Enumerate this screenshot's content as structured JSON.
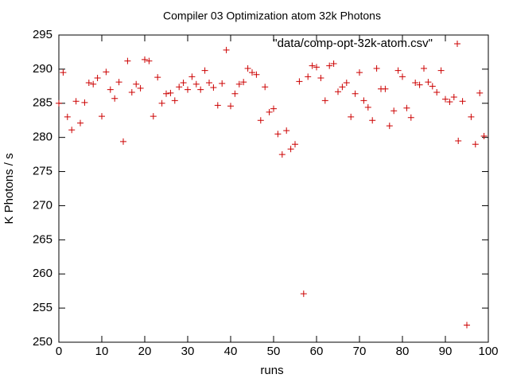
{
  "chart_data": {
    "type": "scatter",
    "title": "Compiler 03 Optimization atom 32k Photons",
    "x_label": "runs",
    "y_label": "K Photons / s",
    "xlim": [
      0,
      100
    ],
    "ylim": [
      250,
      295
    ],
    "xticks": [
      0,
      10,
      20,
      30,
      40,
      50,
      60,
      70,
      80,
      90,
      100
    ],
    "yticks": [
      250,
      255,
      260,
      265,
      270,
      275,
      280,
      285,
      290,
      295
    ],
    "grid": false,
    "legend": "top-right",
    "series": [
      {
        "name": "\"data/comp-opt-32k-atom.csv\"",
        "color": "#cc0000",
        "x": [
          0,
          1,
          2,
          3,
          4,
          5,
          6,
          7,
          8,
          9,
          10,
          11,
          12,
          13,
          14,
          15,
          16,
          17,
          18,
          19,
          20,
          21,
          22,
          23,
          24,
          25,
          26,
          27,
          28,
          29,
          30,
          31,
          32,
          33,
          34,
          35,
          36,
          37,
          38,
          39,
          40,
          41,
          42,
          43,
          44,
          45,
          46,
          47,
          48,
          49,
          50,
          51,
          52,
          53,
          54,
          55,
          56,
          57,
          58,
          59,
          60,
          61,
          62,
          63,
          64,
          65,
          66,
          67,
          68,
          69,
          70,
          71,
          72,
          73,
          74,
          75,
          76,
          77,
          78,
          79,
          80,
          81,
          82,
          83,
          84,
          85,
          86,
          87,
          88,
          89,
          90,
          91,
          92,
          93,
          94,
          95,
          96,
          97,
          98,
          99
        ],
        "values": [
          285.0,
          289.5,
          283.0,
          281.1,
          285.3,
          282.1,
          285.1,
          288.0,
          287.8,
          288.7,
          283.1,
          289.6,
          287.0,
          285.7,
          288.1,
          279.4,
          291.2,
          286.6,
          287.8,
          287.2,
          291.4,
          291.2,
          283.1,
          288.8,
          285.0,
          286.4,
          286.5,
          285.4,
          287.4,
          288.0,
          287.0,
          288.9,
          287.8,
          287.0,
          289.8,
          288.0,
          287.3,
          284.7,
          287.9,
          292.8,
          284.6,
          286.4,
          287.8,
          288.1,
          290.1,
          289.5,
          289.2,
          282.5,
          287.4,
          283.7,
          284.2,
          280.5,
          277.5,
          281.0,
          278.3,
          279.0,
          288.2,
          257.1,
          288.9,
          290.5,
          290.3,
          288.7,
          285.4,
          290.5,
          290.8,
          286.7,
          287.4,
          288.0,
          283.0,
          286.4,
          289.5,
          285.4,
          284.4,
          282.5,
          290.1,
          287.1,
          287.1,
          281.7,
          283.9,
          289.8,
          288.9,
          284.3,
          282.9,
          288.0,
          287.7,
          290.1,
          288.1,
          287.5,
          286.6,
          289.8,
          285.6,
          285.2,
          285.9,
          279.5,
          285.3,
          252.5,
          283.0,
          279.0,
          286.5,
          280.2
        ]
      }
    ]
  }
}
